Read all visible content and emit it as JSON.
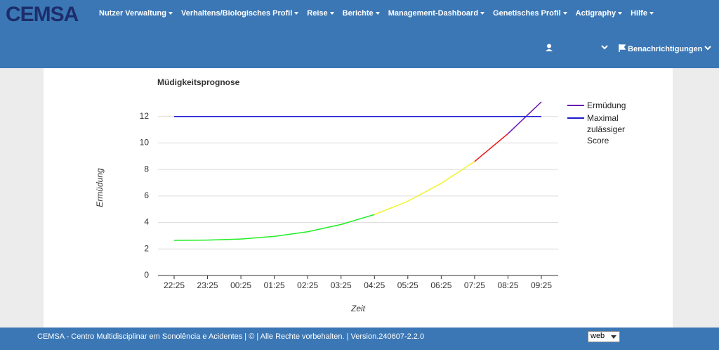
{
  "header": {
    "logo": "CEMSA",
    "nav": [
      "Nutzer Verwaltung",
      "Verhaltens/Biologisches Profil",
      "Reise",
      "Berichte",
      "Management-Dashboard",
      "Genetisches Profil",
      "Actigraphy",
      "Hilfe"
    ],
    "notifications": "Benachrichtigungen"
  },
  "chart_data": {
    "type": "line",
    "title": "Müdigkeitsprognose",
    "x_label": "Zeit",
    "y_label": "Ermüdung",
    "categories": [
      "22:25",
      "23:25",
      "00:25",
      "01:25",
      "02:25",
      "03:25",
      "04:25",
      "05:25",
      "06:25",
      "07:25",
      "08:25",
      "09:25"
    ],
    "series": [
      {
        "name": "Ermüdung",
        "color": "#6a1bb0",
        "values": [
          2.65,
          2.67,
          2.75,
          2.95,
          3.3,
          3.85,
          4.6,
          5.6,
          6.95,
          8.6,
          10.7,
          13.1
        ],
        "segment_colors": [
          "#22ee22",
          "#22ee22",
          "#22ee22",
          "#22ee22",
          "#22ee22",
          "#22ee22",
          "#f2f230",
          "#f2f230",
          "#f2f230",
          "#ee1111",
          "#6a1bb0"
        ]
      },
      {
        "name": "Maximal zulässiger Score",
        "color": "#1a1ad0",
        "values": [
          12,
          12,
          12,
          12,
          12,
          12,
          12,
          12,
          12,
          12,
          12,
          12
        ]
      }
    ],
    "ylim": [
      0,
      14
    ],
    "yticks": [
      0,
      2,
      4,
      6,
      8,
      10,
      12
    ],
    "grid": true
  },
  "footer": {
    "text": "CEMSA - Centro Multidisciplinar em Sonolência e Acidentes | © | Alle Rechte vorbehalten. | Version.240607-2.2.0",
    "environment": "web"
  }
}
